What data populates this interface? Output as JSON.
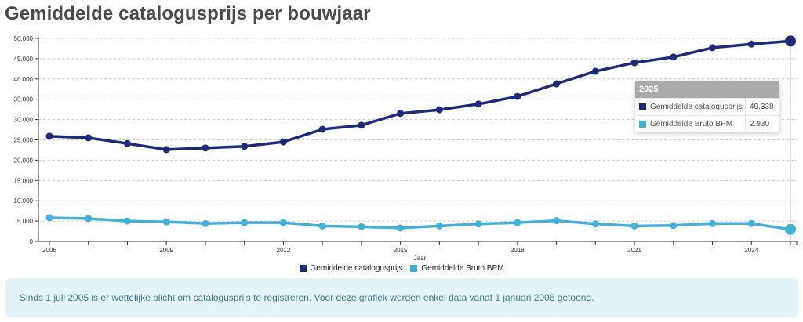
{
  "page": {
    "title": "Gemiddelde catalogusprijs per bouwjaar",
    "note": "Sinds 1 juli 2005 is er wettelijke plicht om catalogusprijs te registreren. Voor deze grafiek worden enkel data vanaf 1 januari 2006 getoond."
  },
  "tooltip": {
    "year": "2025",
    "rows": [
      {
        "label": "Gemiddelde catalogusprijs",
        "value": "49.338",
        "color": "#1e2a78"
      },
      {
        "label": "Gemiddelde Bruto BPM",
        "value": "2.930",
        "color": "#45b0d6"
      }
    ]
  },
  "chart_data": {
    "type": "line",
    "title": "Gemiddelde catalogusprijs per bouwjaar",
    "xlabel": "Jaar",
    "ylabel": "",
    "x": [
      2006,
      2007,
      2008,
      2009,
      2010,
      2011,
      2012,
      2013,
      2014,
      2015,
      2016,
      2017,
      2018,
      2019,
      2020,
      2021,
      2022,
      2023,
      2024,
      2025
    ],
    "xlim": [
      2006,
      2025.2
    ],
    "ylim": [
      0,
      50000
    ],
    "xticks": [
      2006,
      2007,
      2008,
      2009,
      2010,
      2011,
      2012,
      2013,
      2014,
      2015,
      2016,
      2017,
      2018,
      2019,
      2020,
      2021,
      2022,
      2023,
      2024,
      2025
    ],
    "xtick_labels": [
      "2006",
      "",
      "",
      "2009",
      "",
      "",
      "2012",
      "",
      "",
      "2015",
      "",
      "",
      "2018",
      "",
      "",
      "2021",
      "",
      "",
      "2024",
      ""
    ],
    "yticks": [
      0,
      5000,
      10000,
      15000,
      20000,
      25000,
      30000,
      35000,
      40000,
      45000,
      50000
    ],
    "ytick_labels": [
      "0",
      "5.000",
      "10.000",
      "15.000",
      "20.000",
      "25.000",
      "30.000",
      "35.000",
      "40.000",
      "45.000",
      "50.000"
    ],
    "grid": true,
    "legend_position": "bottom-center",
    "highlight_x": 2025,
    "series": [
      {
        "name": "Gemiddelde catalogusprijs",
        "color": "#1e2a78",
        "values": [
          25900,
          25500,
          24100,
          22600,
          23000,
          23400,
          24500,
          27600,
          28600,
          31500,
          32400,
          33800,
          35700,
          38800,
          41900,
          44000,
          45400,
          47700,
          48600,
          49338
        ]
      },
      {
        "name": "Gemiddelde Bruto BPM",
        "color": "#45b0d6",
        "values": [
          5800,
          5600,
          5000,
          4800,
          4400,
          4600,
          4600,
          3800,
          3600,
          3300,
          3800,
          4300,
          4600,
          5100,
          4300,
          3800,
          3900,
          4400,
          4400,
          2930
        ]
      }
    ]
  }
}
